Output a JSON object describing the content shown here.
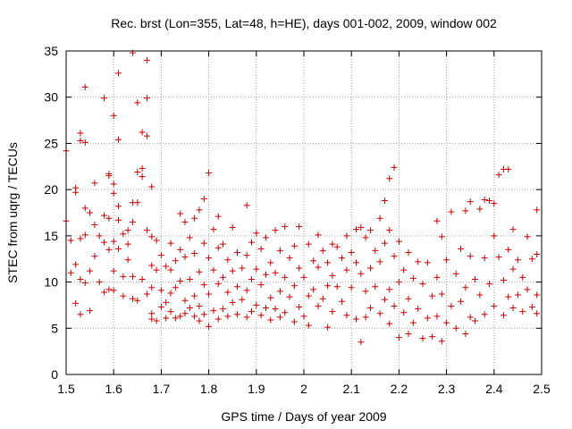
{
  "chart_data": {
    "type": "scatter",
    "title": "Rec. brst (Lon=355, Lat=48, h=HE), days 001-002, 2009, window 002",
    "xlabel": "GPS time / Days of year 2009",
    "ylabel": "STEC from uqrg / TECUs",
    "xlim": [
      1.5,
      2.5
    ],
    "ylim": [
      0,
      35
    ],
    "xticks": [
      1.5,
      1.6,
      1.7,
      1.8,
      1.9,
      2.0,
      2.1,
      2.2,
      2.3,
      2.4,
      2.5
    ],
    "xtick_labels": [
      "1.5",
      "1.6",
      "1.7",
      "1.8",
      "1.9",
      "2",
      "2.1",
      "2.2",
      "2.3",
      "2.4",
      "2.5"
    ],
    "yticks": [
      0,
      5,
      10,
      15,
      20,
      25,
      30,
      35
    ],
    "ytick_labels": [
      "0",
      "5",
      "10",
      "15",
      "20",
      "25",
      "30",
      "35"
    ],
    "grid": true,
    "marker": "+",
    "color": "#cc0000",
    "series": [
      {
        "name": "STEC",
        "points": [
          [
            1.5,
            24.2
          ],
          [
            1.5,
            16.6
          ],
          [
            1.51,
            14.5
          ],
          [
            1.51,
            11.0
          ],
          [
            1.52,
            20.2
          ],
          [
            1.52,
            19.7
          ],
          [
            1.52,
            11.9
          ],
          [
            1.52,
            7.7
          ],
          [
            1.53,
            26.1
          ],
          [
            1.53,
            25.3
          ],
          [
            1.53,
            14.7
          ],
          [
            1.53,
            10.3
          ],
          [
            1.53,
            6.5
          ],
          [
            1.54,
            31.1
          ],
          [
            1.54,
            25.1
          ],
          [
            1.54,
            18.0
          ],
          [
            1.54,
            15.1
          ],
          [
            1.54,
            9.9
          ],
          [
            1.55,
            17.5
          ],
          [
            1.55,
            11.2
          ],
          [
            1.55,
            6.9
          ],
          [
            1.56,
            20.7
          ],
          [
            1.56,
            16.2
          ],
          [
            1.56,
            12.8
          ],
          [
            1.57,
            15.0
          ],
          [
            1.57,
            10.0
          ],
          [
            1.58,
            29.9
          ],
          [
            1.58,
            17.2
          ],
          [
            1.58,
            14.3
          ],
          [
            1.58,
            8.9
          ],
          [
            1.59,
            21.7
          ],
          [
            1.59,
            21.5
          ],
          [
            1.59,
            16.9
          ],
          [
            1.59,
            13.5
          ],
          [
            1.59,
            9.2
          ],
          [
            1.6,
            28.0
          ],
          [
            1.6,
            20.6
          ],
          [
            1.6,
            19.6
          ],
          [
            1.6,
            14.4
          ],
          [
            1.6,
            11.2
          ],
          [
            1.6,
            9.1
          ],
          [
            1.61,
            32.6
          ],
          [
            1.61,
            25.4
          ],
          [
            1.61,
            18.2
          ],
          [
            1.61,
            16.7
          ],
          [
            1.61,
            13.6
          ],
          [
            1.62,
            15.2
          ],
          [
            1.62,
            10.6
          ],
          [
            1.62,
            8.5
          ],
          [
            1.63,
            15.6
          ],
          [
            1.63,
            14.1
          ],
          [
            1.63,
            12.4
          ],
          [
            1.64,
            34.8
          ],
          [
            1.64,
            18.6
          ],
          [
            1.64,
            16.5
          ],
          [
            1.64,
            10.6
          ],
          [
            1.64,
            8.2
          ],
          [
            1.65,
            29.4
          ],
          [
            1.65,
            21.9
          ],
          [
            1.65,
            18.6
          ],
          [
            1.65,
            8.0
          ],
          [
            1.66,
            22.3
          ],
          [
            1.66,
            21.4
          ],
          [
            1.66,
            26.2
          ],
          [
            1.66,
            10.3
          ],
          [
            1.67,
            29.9
          ],
          [
            1.67,
            25.8
          ],
          [
            1.67,
            34.0
          ],
          [
            1.67,
            15.6
          ],
          [
            1.67,
            8.7
          ],
          [
            1.68,
            20.3
          ],
          [
            1.68,
            14.9
          ],
          [
            1.68,
            11.8
          ],
          [
            1.68,
            9.4
          ],
          [
            1.68,
            6.6
          ],
          [
            1.68,
            6.0
          ],
          [
            1.69,
            14.5
          ],
          [
            1.69,
            11.3
          ],
          [
            1.69,
            5.8
          ],
          [
            1.7,
            12.9
          ],
          [
            1.7,
            9.1
          ],
          [
            1.7,
            7.3
          ],
          [
            1.71,
            11.7
          ],
          [
            1.71,
            7.8
          ],
          [
            1.71,
            6.1
          ],
          [
            1.72,
            14.2
          ],
          [
            1.72,
            11.3
          ],
          [
            1.72,
            8.8
          ],
          [
            1.72,
            6.8
          ],
          [
            1.73,
            12.3
          ],
          [
            1.73,
            9.4
          ],
          [
            1.73,
            6.1
          ],
          [
            1.74,
            17.4
          ],
          [
            1.74,
            13.5
          ],
          [
            1.74,
            10.1
          ],
          [
            1.74,
            6.3
          ],
          [
            1.75,
            16.5
          ],
          [
            1.75,
            12.7
          ],
          [
            1.75,
            8.0
          ],
          [
            1.75,
            6.6
          ],
          [
            1.76,
            14.8
          ],
          [
            1.76,
            10.3
          ],
          [
            1.76,
            7.2
          ],
          [
            1.77,
            16.9
          ],
          [
            1.77,
            13.1
          ],
          [
            1.77,
            8.5
          ],
          [
            1.77,
            6.3
          ],
          [
            1.78,
            17.8
          ],
          [
            1.78,
            11.1
          ],
          [
            1.78,
            7.4
          ],
          [
            1.78,
            5.8
          ],
          [
            1.79,
            19.0
          ],
          [
            1.79,
            14.2
          ],
          [
            1.79,
            9.7
          ],
          [
            1.79,
            6.5
          ],
          [
            1.8,
            21.8
          ],
          [
            1.8,
            12.6
          ],
          [
            1.8,
            8.7
          ],
          [
            1.8,
            5.2
          ],
          [
            1.81,
            15.7
          ],
          [
            1.81,
            11.3
          ],
          [
            1.81,
            6.9
          ],
          [
            1.82,
            17.1
          ],
          [
            1.82,
            13.7
          ],
          [
            1.82,
            9.8
          ],
          [
            1.82,
            6.0
          ],
          [
            1.83,
            14.1
          ],
          [
            1.83,
            10.5
          ],
          [
            1.83,
            7.1
          ],
          [
            1.84,
            12.4
          ],
          [
            1.84,
            8.9
          ],
          [
            1.84,
            6.3
          ],
          [
            1.85,
            15.9
          ],
          [
            1.85,
            11.2
          ],
          [
            1.85,
            7.8
          ],
          [
            1.86,
            13.2
          ],
          [
            1.86,
            9.5
          ],
          [
            1.86,
            6.5
          ],
          [
            1.87,
            11.5
          ],
          [
            1.87,
            8.1
          ],
          [
            1.88,
            18.3
          ],
          [
            1.88,
            12.9
          ],
          [
            1.88,
            9.1
          ],
          [
            1.88,
            6.2
          ],
          [
            1.89,
            14.3
          ],
          [
            1.89,
            10.3
          ],
          [
            1.89,
            6.8
          ],
          [
            1.9,
            15.3
          ],
          [
            1.9,
            11.4
          ],
          [
            1.9,
            7.5
          ],
          [
            1.91,
            13.6
          ],
          [
            1.91,
            9.7
          ],
          [
            1.91,
            6.4
          ],
          [
            1.92,
            14.8
          ],
          [
            1.92,
            10.8
          ],
          [
            1.92,
            7.2
          ],
          [
            1.93,
            12.1
          ],
          [
            1.93,
            8.3
          ],
          [
            1.93,
            5.9
          ],
          [
            1.94,
            15.6
          ],
          [
            1.94,
            11.0
          ],
          [
            1.94,
            7.1
          ],
          [
            1.95,
            13.4
          ],
          [
            1.95,
            9.0
          ],
          [
            1.95,
            6.2
          ],
          [
            1.96,
            16.0
          ],
          [
            1.96,
            10.5
          ],
          [
            1.96,
            6.7
          ],
          [
            1.97,
            12.6
          ],
          [
            1.97,
            8.4
          ],
          [
            1.98,
            13.9
          ],
          [
            1.98,
            9.6
          ],
          [
            1.98,
            5.7
          ],
          [
            1.99,
            16.0
          ],
          [
            1.99,
            11.5
          ],
          [
            1.99,
            7.3
          ],
          [
            2.0,
            10.5
          ],
          [
            2.0,
            6.3
          ],
          [
            2.01,
            14.1
          ],
          [
            2.01,
            8.5
          ],
          [
            2.01,
            5.3
          ],
          [
            2.02,
            12.3
          ],
          [
            2.02,
            9.2
          ],
          [
            2.03,
            15.1
          ],
          [
            2.03,
            11.6
          ],
          [
            2.03,
            7.4
          ],
          [
            2.04,
            13.4
          ],
          [
            2.04,
            8.2
          ],
          [
            2.05,
            12.1
          ],
          [
            2.05,
            9.6
          ],
          [
            2.05,
            5.1
          ],
          [
            2.06,
            14.1
          ],
          [
            2.06,
            10.7
          ],
          [
            2.06,
            6.8
          ],
          [
            2.07,
            13.8
          ],
          [
            2.07,
            9.5
          ],
          [
            2.08,
            12.6
          ],
          [
            2.08,
            7.9
          ],
          [
            2.09,
            15.0
          ],
          [
            2.09,
            11.3
          ],
          [
            2.09,
            6.4
          ],
          [
            2.1,
            13.2
          ],
          [
            2.1,
            9.4
          ],
          [
            2.11,
            15.7
          ],
          [
            2.11,
            12.1
          ],
          [
            2.11,
            6.0
          ],
          [
            2.12,
            15.9
          ],
          [
            2.12,
            10.9
          ],
          [
            2.12,
            3.5
          ],
          [
            2.13,
            14.8
          ],
          [
            2.13,
            9.0
          ],
          [
            2.13,
            6.2
          ],
          [
            2.14,
            15.6
          ],
          [
            2.14,
            11.5
          ],
          [
            2.14,
            7.2
          ],
          [
            2.15,
            13.4
          ],
          [
            2.15,
            9.5
          ],
          [
            2.16,
            16.9
          ],
          [
            2.16,
            12.2
          ],
          [
            2.16,
            6.6
          ],
          [
            2.17,
            18.8
          ],
          [
            2.17,
            14.2
          ],
          [
            2.17,
            8.1
          ],
          [
            2.18,
            21.2
          ],
          [
            2.18,
            15.6
          ],
          [
            2.18,
            9.2
          ],
          [
            2.18,
            5.5
          ],
          [
            2.19,
            22.4
          ],
          [
            2.19,
            12.8
          ],
          [
            2.19,
            7.4
          ],
          [
            2.2,
            14.4
          ],
          [
            2.2,
            10.0
          ],
          [
            2.2,
            4.0
          ],
          [
            2.21,
            11.3
          ],
          [
            2.21,
            6.7
          ],
          [
            2.22,
            13.2
          ],
          [
            2.22,
            8.2
          ],
          [
            2.22,
            4.4
          ],
          [
            2.23,
            10.4
          ],
          [
            2.23,
            5.6
          ],
          [
            2.24,
            12.2
          ],
          [
            2.24,
            7.1
          ],
          [
            2.25,
            9.8
          ],
          [
            2.25,
            3.9
          ],
          [
            2.26,
            12.1
          ],
          [
            2.26,
            6.1
          ],
          [
            2.27,
            8.5
          ],
          [
            2.27,
            4.1
          ],
          [
            2.28,
            16.6
          ],
          [
            2.28,
            10.5
          ],
          [
            2.28,
            6.3
          ],
          [
            2.29,
            14.9
          ],
          [
            2.29,
            8.7
          ],
          [
            2.29,
            3.6
          ],
          [
            2.3,
            12.4
          ],
          [
            2.3,
            5.6
          ],
          [
            2.31,
            17.6
          ],
          [
            2.31,
            7.4
          ],
          [
            2.32,
            10.9
          ],
          [
            2.32,
            5.0
          ],
          [
            2.33,
            13.6
          ],
          [
            2.33,
            7.9
          ],
          [
            2.34,
            17.7
          ],
          [
            2.34,
            9.4
          ],
          [
            2.34,
            4.4
          ],
          [
            2.35,
            18.7
          ],
          [
            2.35,
            12.8
          ],
          [
            2.35,
            6.2
          ],
          [
            2.36,
            10.3
          ],
          [
            2.36,
            5.8
          ],
          [
            2.37,
            17.9
          ],
          [
            2.37,
            8.6
          ],
          [
            2.38,
            18.9
          ],
          [
            2.38,
            12.6
          ],
          [
            2.38,
            6.5
          ],
          [
            2.39,
            18.8
          ],
          [
            2.39,
            9.8
          ],
          [
            2.4,
            18.5
          ],
          [
            2.4,
            15.0
          ],
          [
            2.4,
            7.4
          ],
          [
            2.41,
            21.6
          ],
          [
            2.41,
            12.7
          ],
          [
            2.42,
            22.2
          ],
          [
            2.42,
            10.2
          ],
          [
            2.42,
            6.4
          ],
          [
            2.43,
            22.2
          ],
          [
            2.43,
            13.5
          ],
          [
            2.43,
            8.4
          ],
          [
            2.44,
            15.7
          ],
          [
            2.44,
            11.4
          ],
          [
            2.44,
            7.2
          ],
          [
            2.45,
            12.4
          ],
          [
            2.45,
            8.6
          ],
          [
            2.46,
            10.5
          ],
          [
            2.46,
            6.8
          ],
          [
            2.47,
            14.9
          ],
          [
            2.47,
            9.2
          ],
          [
            2.48,
            12.5
          ],
          [
            2.48,
            7.3
          ],
          [
            2.49,
            17.8
          ],
          [
            2.49,
            13.0
          ],
          [
            2.49,
            8.6
          ],
          [
            2.49,
            6.6
          ]
        ]
      }
    ]
  }
}
